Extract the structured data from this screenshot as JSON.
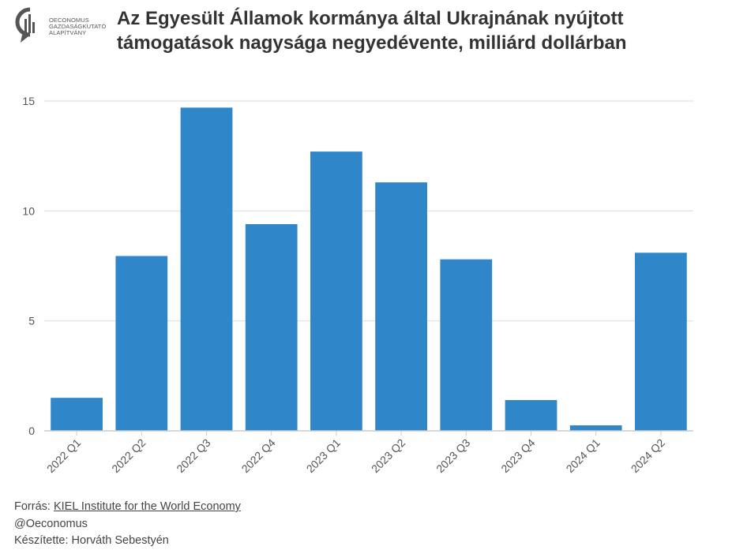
{
  "logo": {
    "icon": "oeconomus-logo-icon",
    "lines": [
      "OECONOMUS",
      "GAZDASÁGKUTATÓ",
      "ALAPÍTVÁNY"
    ]
  },
  "header": {
    "title_line1": "Az Egyesült Államok kormánya által Ukrajnának nyújtott",
    "title_line2": "támogatások nagysága negyedévente, milliárd dollárban"
  },
  "footer": {
    "source_prefix": "Forrás: ",
    "source_link": "KIEL Institute for the World Economy",
    "handle": "@Oeconomus",
    "author": "Készítette: Horváth Sebestyén"
  },
  "colors": {
    "bar": "#2f87ca",
    "grid": "#e6e6e6",
    "axis": "#cccccc",
    "text": "#555555"
  },
  "chart_data": {
    "type": "bar",
    "categories": [
      "2022 Q1",
      "2022 Q2",
      "2022 Q3",
      "2022 Q4",
      "2023 Q1",
      "2023 Q2",
      "2023 Q3",
      "2023 Q4",
      "2024 Q1",
      "2024 Q2"
    ],
    "values": [
      1.5,
      7.95,
      14.7,
      9.4,
      12.7,
      11.3,
      7.8,
      1.4,
      0.25,
      8.1
    ],
    "title": "Az Egyesült Államok kormánya által Ukrajnának nyújtott támogatások nagysága negyedévente, milliárd dollárban",
    "xlabel": "",
    "ylabel": "",
    "ylim": [
      0,
      15.5
    ],
    "yticks": [
      0,
      5,
      10,
      15
    ],
    "grid": true,
    "legend": "none"
  }
}
